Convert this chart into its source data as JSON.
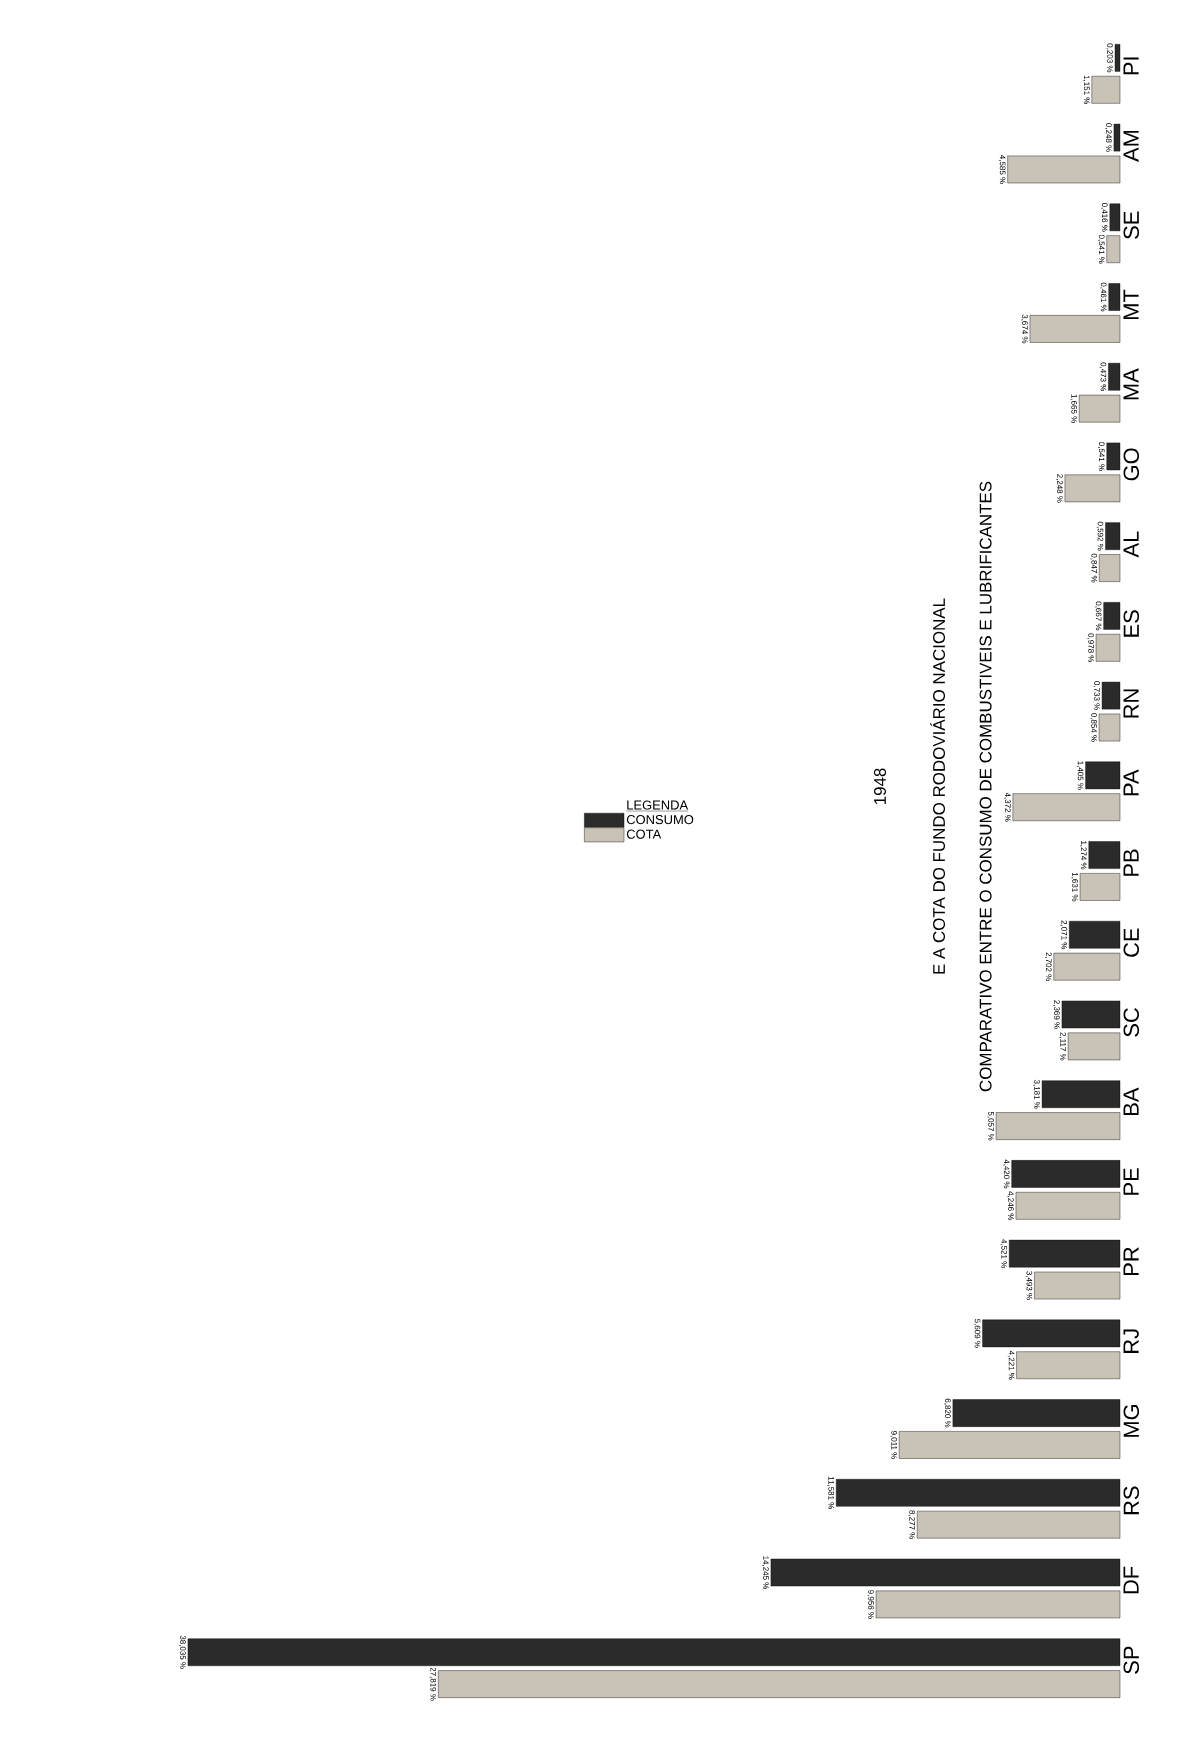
{
  "chart_data": {
    "type": "bar",
    "orientation": "horizontal",
    "title": "COMPARATIVO ENTRE O CONSUMO DE COMBUSTIVEIS E LUBRIFICANTES",
    "subtitle": "E A COTA DO FUNDO RODOVIÁRIO NACIONAL",
    "annotations": [
      "1948"
    ],
    "legend_title": "LEGENDA",
    "legend": "center",
    "tick_labels": "y",
    "categories": [
      "PI",
      "AM",
      "SE",
      "MT",
      "MA",
      "GO",
      "AL",
      "ES",
      "RN",
      "PA",
      "PB",
      "CE",
      "SC",
      "BA",
      "PE",
      "PR",
      "RJ",
      "MG",
      "RS",
      "DF",
      "SP"
    ],
    "series": [
      {
        "name": "CONSUMO",
        "color": "#2b2b2b",
        "values": [
          0.203,
          0.248,
          0.416,
          0.461,
          0.473,
          0.541,
          0.592,
          0.667,
          0.733,
          1.405,
          1.274,
          2.071,
          2.369,
          3.181,
          4.42,
          4.521,
          5.609,
          6.82,
          11.581,
          14.245,
          38.035
        ],
        "value_labels": [
          "0,203 %",
          "0,248 %",
          "0,416 %",
          "0,461 %",
          "0,473 %",
          "0,541 %",
          "0,592 %",
          "0,667 %",
          "0,733 %",
          "1,405 %",
          "1,274 %",
          "2,071 %",
          "2,369 %",
          "3,181 %",
          "4,420 %",
          "4,521 %",
          "5,609 %",
          "6,820 %",
          "11,581 %",
          "14,245 %",
          "38,035 %"
        ]
      },
      {
        "name": "COTA",
        "color": "#c9c2b6",
        "values": [
          1.151,
          4.585,
          0.541,
          3.674,
          1.665,
          2.248,
          0.847,
          0.978,
          0.854,
          4.372,
          1.631,
          2.702,
          2.117,
          5.057,
          4.246,
          3.493,
          4.221,
          9.011,
          8.277,
          9.956,
          27.819
        ],
        "value_labels": [
          "1,151 %",
          "4,585 %",
          "0,541 %",
          "3,674 %",
          "1,665 %",
          "2,248 %",
          "0,847 %",
          "0,978 %",
          "0,854 %",
          "4,372 %",
          "1,631 %",
          "2,702 %",
          "2,117 %",
          "5,057 %",
          "4,246 %",
          "3,493 %",
          "4,221 %",
          "9,011 %",
          "8,277 %",
          "9,956 %",
          "27,819 %"
        ]
      }
    ]
  }
}
